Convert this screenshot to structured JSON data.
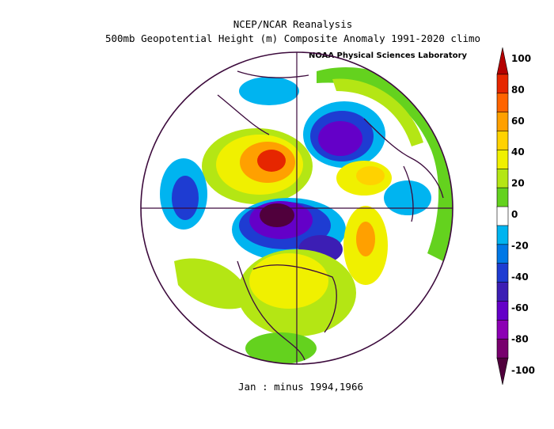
{
  "header": {
    "line1": "NCEP/NCAR Reanalysis",
    "line2": "500mb Geopotential Height (m) Composite Anomaly 1991-2020 climo",
    "credit": "NOAA Physical Sciences Laboratory"
  },
  "footer": {
    "caption": "Jan :  minus 1994,1966"
  },
  "colorbar": {
    "labels": [
      "100",
      "80",
      "60",
      "40",
      "20",
      "0",
      "-20",
      "-40",
      "-60",
      "-80",
      "-100"
    ],
    "colors": [
      "#b40000",
      "#e62600",
      "#ff6400",
      "#ffa000",
      "#ffd200",
      "#f0f000",
      "#b4e614",
      "#64d21e",
      "#ffffff",
      "#00b4f0",
      "#0078e6",
      "#1e3cd2",
      "#3c1eb4",
      "#6400c8",
      "#8c00b4",
      "#78006e",
      "#50003c"
    ]
  }
}
